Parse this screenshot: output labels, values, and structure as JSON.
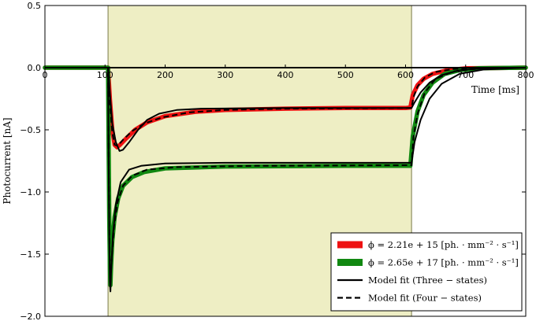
{
  "chart_data": {
    "type": "line",
    "xlabel": "Time [ms]",
    "ylabel": "Photocurrent [nA]",
    "xlim": [
      0,
      800
    ],
    "ylim": [
      -2.0,
      0.5
    ],
    "x_ticks": [
      "0",
      "100",
      "200",
      "300",
      "400",
      "500",
      "600",
      "700",
      "800"
    ],
    "y_ticks": [
      "0.5",
      "0.0",
      "−0.5",
      "−1.0",
      "−1.5",
      "−2.0"
    ],
    "grid": false,
    "legend_position": "bottom-right",
    "stimulus_window_ms": [
      105,
      610
    ],
    "stimulus_color": "#eeeec4",
    "series": [
      {
        "name": "ϕ = 2.21e + 15 [ph. · mm⁻² · s⁻¹]",
        "color": "#ee1111",
        "style": "data",
        "points": [
          [
            0,
            0.0
          ],
          [
            100,
            0.0
          ],
          [
            105,
            0.0
          ],
          [
            108,
            -0.25
          ],
          [
            112,
            -0.5
          ],
          [
            116,
            -0.62
          ],
          [
            120,
            -0.64
          ],
          [
            125,
            -0.62
          ],
          [
            135,
            -0.57
          ],
          [
            150,
            -0.5
          ],
          [
            170,
            -0.44
          ],
          [
            200,
            -0.39
          ],
          [
            250,
            -0.355
          ],
          [
            300,
            -0.34
          ],
          [
            400,
            -0.33
          ],
          [
            500,
            -0.325
          ],
          [
            600,
            -0.325
          ],
          [
            608,
            -0.32
          ],
          [
            612,
            -0.22
          ],
          [
            620,
            -0.14
          ],
          [
            630,
            -0.09
          ],
          [
            645,
            -0.05
          ],
          [
            670,
            -0.02
          ],
          [
            700,
            -0.005
          ],
          [
            800,
            0.0
          ]
        ]
      },
      {
        "name": "ϕ = 2.65e + 17 [ph. · mm⁻² · s⁻¹]",
        "color": "#118811",
        "style": "data",
        "points": [
          [
            0,
            0.0
          ],
          [
            100,
            0.0
          ],
          [
            105,
            0.0
          ],
          [
            106,
            -0.6
          ],
          [
            107,
            -1.2
          ],
          [
            108,
            -1.6
          ],
          [
            109,
            -1.75
          ],
          [
            110,
            -1.6
          ],
          [
            112,
            -1.4
          ],
          [
            116,
            -1.2
          ],
          [
            122,
            -1.05
          ],
          [
            130,
            -0.95
          ],
          [
            145,
            -0.88
          ],
          [
            165,
            -0.84
          ],
          [
            200,
            -0.81
          ],
          [
            300,
            -0.795
          ],
          [
            500,
            -0.79
          ],
          [
            608,
            -0.79
          ],
          [
            612,
            -0.55
          ],
          [
            620,
            -0.35
          ],
          [
            630,
            -0.22
          ],
          [
            645,
            -0.12
          ],
          [
            665,
            -0.05
          ],
          [
            690,
            -0.02
          ],
          [
            720,
            -0.005
          ],
          [
            800,
            0.0
          ]
        ]
      },
      {
        "name": "Model fit (Three − states)",
        "color": "#000000",
        "style": "solid",
        "curves": [
          [
            [
              0,
              0.0
            ],
            [
              800,
              0.0
            ]
          ],
          [
            [
              0,
              0.0
            ],
            [
              105,
              0.0
            ],
            [
              108,
              -0.2
            ],
            [
              112,
              -0.45
            ],
            [
              118,
              -0.6
            ],
            [
              124,
              -0.67
            ],
            [
              130,
              -0.66
            ],
            [
              140,
              -0.6
            ],
            [
              155,
              -0.5
            ],
            [
              170,
              -0.42
            ],
            [
              190,
              -0.37
            ],
            [
              220,
              -0.34
            ],
            [
              260,
              -0.33
            ],
            [
              400,
              -0.325
            ],
            [
              610,
              -0.325
            ],
            [
              615,
              -0.28
            ],
            [
              625,
              -0.2
            ],
            [
              640,
              -0.12
            ],
            [
              660,
              -0.06
            ],
            [
              690,
              -0.02
            ],
            [
              730,
              -0.005
            ],
            [
              800,
              0.0
            ]
          ],
          [
            [
              0,
              0.0
            ],
            [
              105,
              0.0
            ],
            [
              106,
              -0.7
            ],
            [
              107,
              -1.35
            ],
            [
              108,
              -1.72
            ],
            [
              109,
              -1.8
            ],
            [
              110,
              -1.65
            ],
            [
              113,
              -1.35
            ],
            [
              118,
              -1.1
            ],
            [
              126,
              -0.92
            ],
            [
              140,
              -0.82
            ],
            [
              160,
              -0.79
            ],
            [
              200,
              -0.77
            ],
            [
              300,
              -0.765
            ],
            [
              610,
              -0.765
            ],
            [
              615,
              -0.6
            ],
            [
              625,
              -0.42
            ],
            [
              640,
              -0.25
            ],
            [
              660,
              -0.13
            ],
            [
              690,
              -0.05
            ],
            [
              730,
              -0.015
            ],
            [
              800,
              0.0
            ]
          ]
        ]
      },
      {
        "name": "Model fit (Four − states)",
        "color": "#000000",
        "style": "dashed",
        "curves": [
          [
            [
              0,
              0.0
            ],
            [
              105,
              0.0
            ],
            [
              108,
              -0.28
            ],
            [
              112,
              -0.52
            ],
            [
              116,
              -0.62
            ],
            [
              121,
              -0.63
            ],
            [
              130,
              -0.58
            ],
            [
              145,
              -0.51
            ],
            [
              165,
              -0.45
            ],
            [
              195,
              -0.4
            ],
            [
              240,
              -0.36
            ],
            [
              300,
              -0.34
            ],
            [
              400,
              -0.33
            ],
            [
              610,
              -0.325
            ],
            [
              613,
              -0.24
            ],
            [
              620,
              -0.15
            ],
            [
              632,
              -0.08
            ],
            [
              650,
              -0.035
            ],
            [
              680,
              -0.01
            ],
            [
              800,
              0.0
            ]
          ],
          [
            [
              0,
              0.0
            ],
            [
              105,
              0.0
            ],
            [
              106,
              -0.65
            ],
            [
              107,
              -1.25
            ],
            [
              108,
              -1.62
            ],
            [
              109,
              -1.72
            ],
            [
              111,
              -1.55
            ],
            [
              115,
              -1.28
            ],
            [
              121,
              -1.08
            ],
            [
              130,
              -0.95
            ],
            [
              145,
              -0.87
            ],
            [
              170,
              -0.82
            ],
            [
              220,
              -0.8
            ],
            [
              350,
              -0.79
            ],
            [
              610,
              -0.785
            ],
            [
              613,
              -0.56
            ],
            [
              620,
              -0.37
            ],
            [
              632,
              -0.2
            ],
            [
              650,
              -0.09
            ],
            [
              680,
              -0.03
            ],
            [
              720,
              -0.008
            ],
            [
              800,
              0.0
            ]
          ]
        ]
      }
    ]
  }
}
